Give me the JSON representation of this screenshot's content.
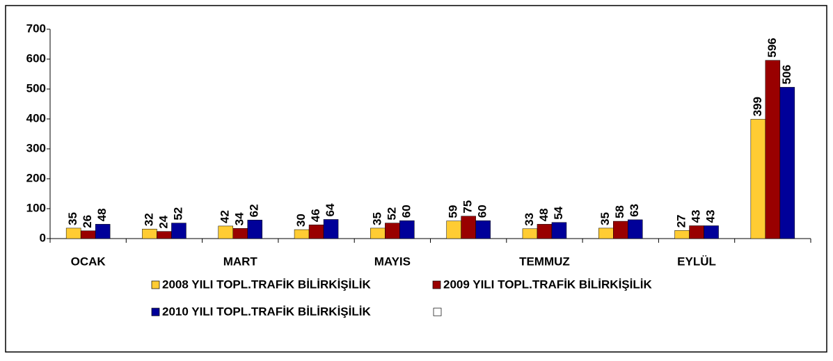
{
  "chart_data": {
    "type": "bar",
    "categories": [
      "OCAK",
      null,
      "MART",
      null,
      "MAYIS",
      null,
      "TEMMUZ",
      null,
      "EYLÜL",
      null
    ],
    "series": [
      {
        "name": "2008 YILI TOPL.TRAFİK BİLİRKİŞİLİK",
        "color": "#ffcc33",
        "values": [
          35,
          32,
          42,
          30,
          35,
          59,
          33,
          35,
          27,
          399
        ]
      },
      {
        "name": "2009 YILI TOPL.TRAFİK BİLİRKİŞİLİK",
        "color": "#990000",
        "values": [
          26,
          24,
          34,
          46,
          52,
          75,
          48,
          58,
          43,
          596
        ]
      },
      {
        "name": "2010 YILI TOPL.TRAFİK BİLİRKİŞİLİK",
        "color": "#000099",
        "values": [
          48,
          52,
          62,
          64,
          60,
          60,
          54,
          63,
          43,
          506
        ]
      }
    ],
    "ylim": [
      0,
      700
    ],
    "yticks": [
      0,
      100,
      200,
      300,
      400,
      500,
      600,
      700
    ],
    "grid": false,
    "legend": "bottom"
  }
}
